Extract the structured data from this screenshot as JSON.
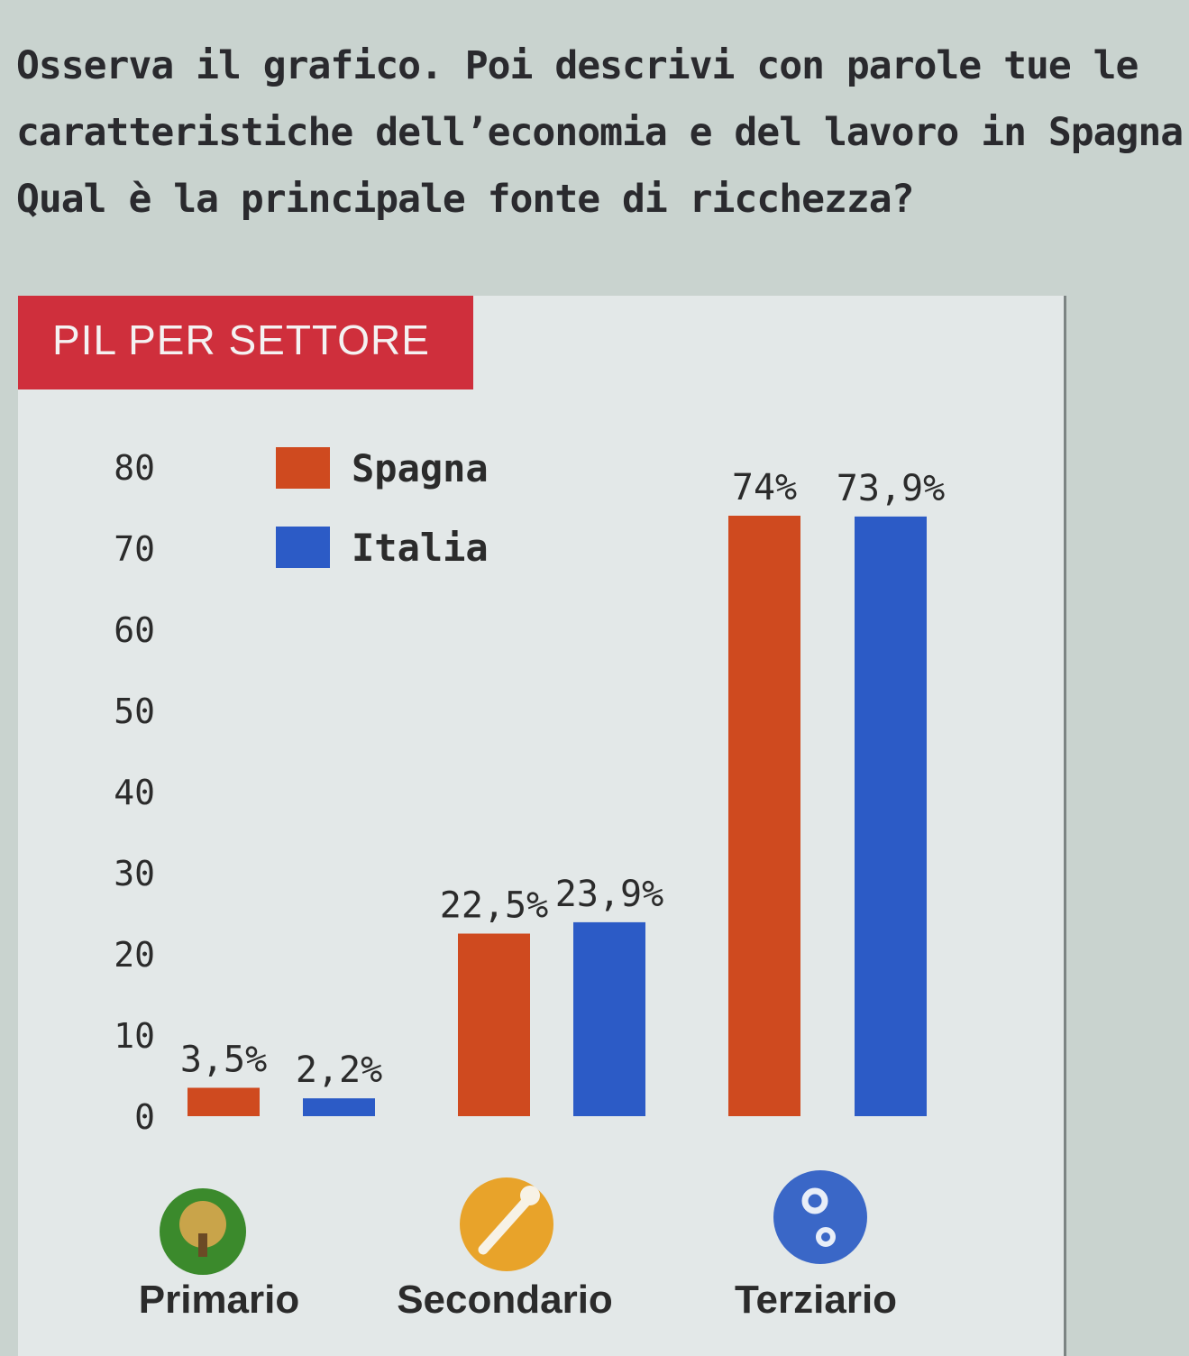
{
  "question": {
    "line1": "Osserva il grafico. Poi descrivi con parole tue le",
    "line2": "caratteristiche dell’economia e del lavoro in Spagna.",
    "line3": "Qual è la principale fonte di ricchezza?"
  },
  "chart_data": {
    "type": "bar",
    "title": "PIL PER SETTORE",
    "categories": [
      "Primario",
      "Secondario",
      "Terziario"
    ],
    "series": [
      {
        "name": "Spagna",
        "values": [
          3.5,
          22.5,
          74
        ],
        "labels": [
          "3,5%",
          "22,5%",
          "74%"
        ],
        "color": "#cf4a1f"
      },
      {
        "name": "Italia",
        "values": [
          2.2,
          23.9,
          73.9
        ],
        "labels": [
          "2,2%",
          "23,9%",
          "73,9%"
        ],
        "color": "#2c5bc6"
      }
    ],
    "yticks": [
      0,
      10,
      20,
      30,
      40,
      50,
      60,
      70,
      80
    ],
    "ylim": [
      0,
      80
    ],
    "grid": false,
    "legend": "top-left",
    "category_icons": [
      "tree-icon",
      "wrench-icon",
      "gears-icon"
    ],
    "category_icon_colors": [
      "#3b8a2c",
      "#e8a32a",
      "#3a67c7"
    ]
  }
}
